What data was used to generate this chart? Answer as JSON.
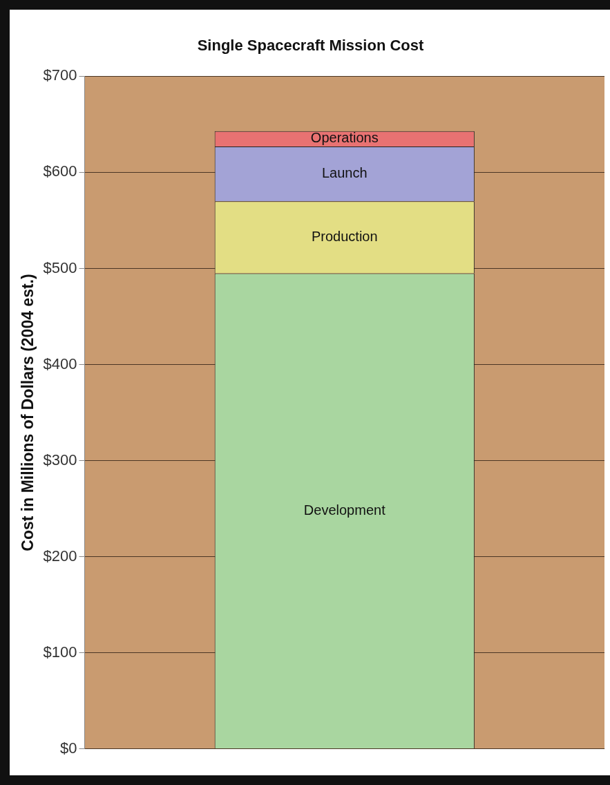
{
  "chart_data": {
    "type": "bar",
    "title": "Single Spacecraft Mission Cost",
    "ylabel": "Cost in Millions of Dollars (2004 est.)",
    "categories": [
      null
    ],
    "stacked": true,
    "series": [
      {
        "name": "Development",
        "color": "#a9d6a0",
        "values": [
          495
        ]
      },
      {
        "name": "Production",
        "color": "#e3de84",
        "values": [
          75
        ]
      },
      {
        "name": "Launch",
        "color": "#a3a3d6",
        "values": [
          57
        ]
      },
      {
        "name": "Operations",
        "color": "#e87272",
        "values": [
          16
        ]
      }
    ],
    "ylim": [
      0,
      700
    ],
    "yticks": [
      {
        "value": 0,
        "label": "$0"
      },
      {
        "value": 100,
        "label": "$100"
      },
      {
        "value": 200,
        "label": "$200"
      },
      {
        "value": 300,
        "label": "$300"
      },
      {
        "value": 400,
        "label": "$400"
      },
      {
        "value": 500,
        "label": "$500"
      },
      {
        "value": 600,
        "label": "$600"
      },
      {
        "value": 700,
        "label": "$700"
      }
    ],
    "grid": "y",
    "legend": false
  }
}
